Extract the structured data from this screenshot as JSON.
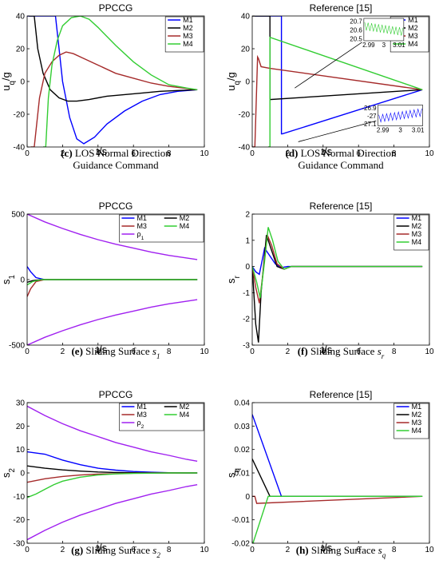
{
  "colors": {
    "M1": "#0000ff",
    "M2": "#000000",
    "M3": "#a52a2a",
    "M4": "#32cd32",
    "rho": "#a020f0"
  },
  "chart_data": [
    {
      "id": "c",
      "type": "line",
      "title": "PPCCG",
      "xlabel": "t/s",
      "ylabel": "u_q/g",
      "xlim": [
        0,
        10
      ],
      "ylim": [
        -40,
        40
      ],
      "xticks": [
        "0",
        "2",
        "4",
        "6",
        "8",
        "10"
      ],
      "yticks": [
        "-40",
        "-20",
        "0",
        "20",
        "40"
      ],
      "legend": [
        "M1",
        "M2",
        "M3",
        "M4"
      ],
      "legend_position": "top-right",
      "caption": {
        "label": "(c)",
        "text": "LOS Normal Direction Guidance Command"
      },
      "series": [
        {
          "name": "M1",
          "x": [
            0,
            1.6,
            1.8,
            2.0,
            2.4,
            2.8,
            3.2,
            3.8,
            4.5,
            5.5,
            6.5,
            7.5,
            8.5,
            9.6
          ],
          "y": [
            40,
            40,
            20,
            0,
            -22,
            -35,
            -38,
            -34,
            -26,
            -18,
            -12,
            -8,
            -6,
            -5
          ]
        },
        {
          "name": "M2",
          "x": [
            0.1,
            0.4,
            0.6,
            0.9,
            1.3,
            1.8,
            2.3,
            2.8,
            3.5,
            4.5,
            5.5,
            6.5,
            7.5,
            8.5,
            9.6
          ],
          "y": [
            40,
            40,
            20,
            5,
            -5,
            -10,
            -12,
            -12,
            -11,
            -9,
            -8,
            -7,
            -6,
            -5.5,
            -5
          ]
        },
        {
          "name": "M3",
          "x": [
            0.2,
            0.4,
            0.7,
            1.0,
            1.4,
            1.8,
            2.2,
            2.6,
            3.2,
            4,
            5,
            6,
            7,
            8,
            9.6
          ],
          "y": [
            -40,
            -40,
            -10,
            5,
            12,
            16,
            18,
            17,
            14,
            10,
            5,
            2,
            -1,
            -3,
            -5
          ]
        },
        {
          "name": "M4",
          "x": [
            0.9,
            1.05,
            1.2,
            1.4,
            1.7,
            2.0,
            2.5,
            3.0,
            3.5,
            4.0,
            5.0,
            6.0,
            7.0,
            8.0,
            9.0,
            9.6
          ],
          "y": [
            -40,
            -40,
            -10,
            10,
            25,
            34,
            39,
            40,
            38,
            33,
            22,
            12,
            4,
            -2,
            -4,
            -5
          ]
        }
      ]
    },
    {
      "id": "d",
      "type": "line",
      "title": "Reference [15]",
      "xlabel": "t/s",
      "ylabel": "u_q/g",
      "xlim": [
        0,
        10
      ],
      "ylim": [
        -40,
        40
      ],
      "xticks": [
        "0",
        "2",
        "4",
        "6",
        "8",
        "10"
      ],
      "yticks": [
        "-40",
        "-20",
        "0",
        "20",
        "40"
      ],
      "legend": [
        "M1",
        "M2",
        "M3",
        "M4"
      ],
      "legend_position": "top-right",
      "caption": {
        "label": "(d)",
        "text": "LOS Normal Direction Guidance Command"
      },
      "series": [
        {
          "name": "M1",
          "x": [
            0.15,
            1.65,
            1.65,
            1.7,
            9.6
          ],
          "y": [
            40,
            40,
            -32,
            -32,
            -5
          ]
        },
        {
          "name": "M2",
          "x": [
            0,
            1.0,
            1.0,
            9.6
          ],
          "y": [
            40,
            40,
            -11,
            -5
          ]
        },
        {
          "name": "M3",
          "x": [
            0,
            0.15,
            0.3,
            0.35,
            0.5,
            1.0,
            9.6
          ],
          "y": [
            -40,
            -40,
            15,
            14,
            9,
            8,
            -5
          ]
        },
        {
          "name": "M4",
          "x": [
            0.9,
            1.0,
            1.0,
            9.6
          ],
          "y": [
            -40,
            -40,
            27,
            -5
          ]
        }
      ],
      "insets": [
        {
          "xticks": [
            "2.99",
            "3",
            "3.01"
          ],
          "yticks": [
            "20.7",
            "20.6",
            "20.5"
          ]
        },
        {
          "xticks": [
            "2.99",
            "3",
            "3.01"
          ],
          "yticks": [
            "-26.9",
            "-27",
            "-27.1"
          ]
        }
      ]
    },
    {
      "id": "e",
      "type": "line",
      "title": "PPCCG",
      "xlabel": "t/s",
      "ylabel": "s_1",
      "xlim": [
        0,
        10
      ],
      "ylim": [
        -500,
        500
      ],
      "xticks": [
        "0",
        "2",
        "4",
        "6",
        "8",
        "10"
      ],
      "yticks": [
        "-500",
        "0",
        "500"
      ],
      "legend": [
        "M1",
        "M2",
        "M3",
        "M4",
        "ρ_1"
      ],
      "legend_position": "top-right",
      "caption": {
        "label": "(e)",
        "text": "Sliding Surface",
        "symbol": "s",
        "sub": "1"
      },
      "series": [
        {
          "name": "M1",
          "x": [
            0,
            0.2,
            0.5,
            1.0,
            9.6
          ],
          "y": [
            100,
            60,
            15,
            0,
            0
          ]
        },
        {
          "name": "M2",
          "x": [
            0,
            0.3,
            0.8,
            9.6
          ],
          "y": [
            -20,
            -8,
            0,
            0
          ]
        },
        {
          "name": "M3",
          "x": [
            0,
            0.2,
            0.5,
            1.0,
            9.6
          ],
          "y": [
            -130,
            -70,
            -15,
            0,
            0
          ]
        },
        {
          "name": "M4",
          "x": [
            0,
            0.3,
            0.8,
            9.6
          ],
          "y": [
            -40,
            -15,
            0,
            0
          ]
        },
        {
          "name": "ρ_1",
          "x": [
            0,
            1,
            2,
            3,
            4,
            5,
            6,
            7,
            8,
            9,
            9.6
          ],
          "y": [
            500,
            440,
            390,
            345,
            305,
            270,
            240,
            210,
            185,
            165,
            153
          ]
        },
        {
          "name": "ρ_1 (lower)",
          "x": [
            0,
            1,
            2,
            3,
            4,
            5,
            6,
            7,
            8,
            9,
            9.6
          ],
          "y": [
            -500,
            -440,
            -390,
            -345,
            -305,
            -270,
            -240,
            -210,
            -185,
            -165,
            -153
          ]
        }
      ]
    },
    {
      "id": "f",
      "type": "line",
      "title": "Reference [15]",
      "xlabel": "t/s",
      "ylabel": "s_r",
      "xlim": [
        0,
        10
      ],
      "ylim": [
        -3,
        2
      ],
      "xticks": [
        "0",
        "2",
        "4",
        "6",
        "8",
        "10"
      ],
      "yticks": [
        "-3",
        "-2",
        "-1",
        "0",
        "1",
        "2"
      ],
      "legend": [
        "M1",
        "M2",
        "M3",
        "M4"
      ],
      "legend_position": "top-right",
      "caption": {
        "label": "(f)",
        "text": "Sliding Surface",
        "symbol": "s",
        "sub": "r"
      },
      "series": [
        {
          "name": "M1",
          "x": [
            0,
            0.2,
            0.4,
            0.7,
            1.0,
            1.3,
            1.6,
            2.0,
            9.6
          ],
          "y": [
            0,
            -0.2,
            -0.3,
            0.7,
            0.4,
            0.1,
            -0.05,
            0,
            0
          ]
        },
        {
          "name": "M2",
          "x": [
            0,
            0.2,
            0.35,
            0.5,
            0.8,
            1.1,
            1.4,
            1.8,
            2.2,
            9.6
          ],
          "y": [
            0,
            -2.2,
            -2.9,
            -1.0,
            1.2,
            0.6,
            0.0,
            -0.1,
            0,
            0
          ]
        },
        {
          "name": "M3",
          "x": [
            0,
            0.2,
            0.4,
            0.6,
            0.85,
            1.1,
            1.4,
            1.8,
            2.2,
            9.6
          ],
          "y": [
            0,
            -0.8,
            -1.4,
            -0.3,
            1.2,
            0.8,
            0.1,
            -0.1,
            0,
            0
          ]
        },
        {
          "name": "M4",
          "x": [
            0,
            0.25,
            0.45,
            0.7,
            0.9,
            1.15,
            1.45,
            1.8,
            2.2,
            9.6
          ],
          "y": [
            0,
            -0.6,
            -1.2,
            0.2,
            1.5,
            1.0,
            0.2,
            -0.1,
            0,
            0
          ]
        }
      ]
    },
    {
      "id": "g",
      "type": "line",
      "title": "PPCCG",
      "xlabel": "t/s",
      "ylabel": "s_2",
      "xlim": [
        0,
        10
      ],
      "ylim": [
        -30,
        30
      ],
      "xticks": [
        "0",
        "2",
        "4",
        "6",
        "8",
        "10"
      ],
      "yticks": [
        "-30",
        "-20",
        "-10",
        "0",
        "10",
        "20",
        "30"
      ],
      "legend": [
        "M1",
        "M2",
        "M3",
        "M4",
        "ρ_2"
      ],
      "legend_position": "top-right",
      "caption": {
        "label": "(g)",
        "text": "Sliding Surface",
        "symbol": "s",
        "sub": "2"
      },
      "series": [
        {
          "name": "M1",
          "x": [
            0,
            1,
            2,
            3,
            4,
            5,
            6,
            7,
            8,
            9,
            9.6
          ],
          "y": [
            9,
            8,
            5.5,
            3.5,
            2,
            1.2,
            0.6,
            0.3,
            0.1,
            0,
            0
          ]
        },
        {
          "name": "M2",
          "x": [
            0,
            1,
            2,
            3,
            4,
            5,
            6,
            7,
            8,
            9,
            9.6
          ],
          "y": [
            3,
            2,
            1.3,
            0.8,
            0.4,
            0.2,
            0.1,
            0,
            0,
            0,
            0
          ]
        },
        {
          "name": "M3",
          "x": [
            0,
            1,
            2,
            3,
            4,
            5,
            6,
            7,
            8,
            9,
            9.6
          ],
          "y": [
            -4,
            -2.5,
            -1.5,
            -0.9,
            -0.5,
            -0.3,
            -0.1,
            0,
            0,
            0,
            0
          ]
        },
        {
          "name": "M4",
          "x": [
            0,
            0.5,
            1,
            1.5,
            2,
            3,
            4,
            5,
            6,
            7,
            8,
            9.6
          ],
          "y": [
            -10.5,
            -9,
            -7,
            -5,
            -3.5,
            -1.8,
            -0.9,
            -0.4,
            -0.2,
            -0.1,
            0,
            0
          ]
        },
        {
          "name": "ρ_2",
          "x": [
            0,
            1,
            2,
            3,
            4,
            5,
            6,
            7,
            8,
            9,
            9.6
          ],
          "y": [
            28.5,
            24.5,
            21,
            18,
            15.5,
            13,
            11,
            9,
            7.5,
            5.8,
            5
          ]
        },
        {
          "name": "ρ_2 (lower)",
          "x": [
            0,
            1,
            2,
            3,
            4,
            5,
            6,
            7,
            8,
            9,
            9.6
          ],
          "y": [
            -28.5,
            -24.5,
            -21,
            -18,
            -15.5,
            -13,
            -11,
            -9,
            -7.5,
            -5.8,
            -5
          ]
        }
      ]
    },
    {
      "id": "h",
      "type": "line",
      "title": "Reference [15]",
      "xlabel": "t/s",
      "ylabel": "s_q",
      "xlim": [
        0,
        10
      ],
      "ylim": [
        -0.02,
        0.04
      ],
      "xticks": [
        "0",
        "2",
        "4",
        "6",
        "8",
        "10"
      ],
      "yticks": [
        "-0.02",
        "-0.01",
        "0",
        "0.01",
        "0.02",
        "0.03",
        "0.04"
      ],
      "legend": [
        "M1",
        "M2",
        "M3",
        "M4"
      ],
      "legend_position": "top-right",
      "caption": {
        "label": "(h)",
        "text": "Sliding Surface",
        "symbol": "s",
        "sub": "q"
      },
      "series": [
        {
          "name": "M1",
          "x": [
            0,
            1.65,
            9.6
          ],
          "y": [
            0.035,
            0,
            0
          ]
        },
        {
          "name": "M2",
          "x": [
            0,
            1.0,
            9.6
          ],
          "y": [
            0.016,
            0,
            0
          ]
        },
        {
          "name": "M3",
          "x": [
            0,
            0.15,
            0.25,
            9.6
          ],
          "y": [
            0,
            0,
            -0.003,
            0
          ]
        },
        {
          "name": "M4",
          "x": [
            0,
            0.9,
            9.6
          ],
          "y": [
            -0.021,
            0,
            0
          ]
        }
      ]
    }
  ]
}
